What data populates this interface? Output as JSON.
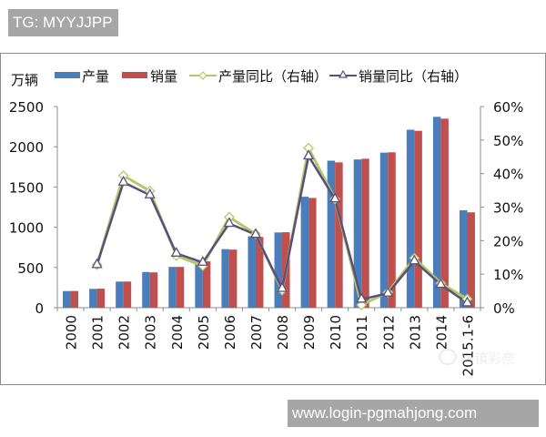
{
  "watermarks": {
    "top_left": "TG: MYYJJPP",
    "bottom_right": "www.login-pgmahjong.com"
  },
  "colors": {
    "production_bar": "#4a7ebb",
    "sales_bar": "#c0504d",
    "production_yoy_line": "#b5c76a",
    "sales_yoy_line": "#5a4f7c"
  },
  "chart_data": {
    "type": "bar",
    "title": "",
    "xlabel": "",
    "ylabel": "万辆",
    "y2label": "",
    "categories": [
      "2000",
      "2001",
      "2002",
      "2003",
      "2004",
      "2005",
      "2006",
      "2007",
      "2008",
      "2009",
      "2010",
      "2011",
      "2012",
      "2013",
      "2014",
      "2015.1-6"
    ],
    "series": [
      {
        "name": "产量",
        "type": "bar",
        "axis": "left",
        "values": [
          207,
          234,
          325,
          444,
          507,
          570,
          728,
          888,
          935,
          1379,
          1827,
          1842,
          1927,
          2212,
          2372,
          1211
        ]
      },
      {
        "name": "销量",
        "type": "bar",
        "axis": "left",
        "values": [
          208,
          237,
          325,
          439,
          507,
          576,
          722,
          879,
          938,
          1364,
          1806,
          1851,
          1931,
          2198,
          2349,
          1185
        ]
      },
      {
        "name": "产量同比（右轴）",
        "type": "line",
        "axis": "right",
        "marker": "diamond",
        "values": [
          null,
          12.8,
          39.4,
          34.8,
          15.5,
          12.5,
          27.0,
          22.0,
          5.2,
          47.6,
          32.4,
          0.8,
          4.6,
          14.8,
          7.3,
          2.6
        ]
      },
      {
        "name": "销量同比（右轴）",
        "type": "line",
        "axis": "right",
        "marker": "triangle",
        "values": [
          null,
          12.8,
          37.4,
          33.6,
          16.2,
          13.5,
          25.1,
          21.8,
          5.7,
          45.2,
          32.4,
          2.5,
          4.3,
          13.9,
          6.9,
          1.4
        ]
      }
    ],
    "ylim": [
      0,
      2500
    ],
    "y_ticks": [
      "0",
      "500",
      "1000",
      "1500",
      "2000",
      "2500"
    ],
    "y2lim": [
      0,
      60
    ],
    "y2_ticks": [
      "0%",
      "10%",
      "20%",
      "30%",
      "40%",
      "50%",
      "60%"
    ],
    "grid": false,
    "legend_position": "top",
    "x_tick_rotation": -90
  },
  "legend": {
    "unit": "万辆",
    "items": [
      {
        "label": "产量",
        "kind": "bar"
      },
      {
        "label": "销量",
        "kind": "bar"
      },
      {
        "label": "产量同比（右轴）",
        "kind": "line-diamond"
      },
      {
        "label": "销量同比（右轴）",
        "kind": "line-triangle"
      }
    ]
  },
  "source_watermark_text": "乌镇彩奈"
}
